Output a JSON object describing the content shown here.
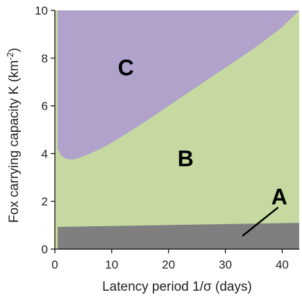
{
  "chart_data": {
    "type": "area",
    "xlabel": "Latency period 1/σ  (days)",
    "ylabel": "Fox carrying capacity K (km",
    "ylabel_sup": "-2",
    "ylabel_end": ")",
    "xlim": [
      0,
      43
    ],
    "ylim": [
      0,
      10
    ],
    "xticks": [
      0,
      10,
      20,
      30,
      40
    ],
    "yticks": [
      0,
      2,
      4,
      6,
      8,
      10
    ],
    "grid": false,
    "regions": [
      {
        "label": "A",
        "color": "#7f7f7f",
        "boundary_top": {
          "x": [
            0.5,
            43
          ],
          "y": [
            0.93,
            1.1
          ]
        }
      },
      {
        "label": "B",
        "color": "#c5d9a0",
        "description_between": "A and C"
      },
      {
        "label": "C",
        "color": "#b1a2cc",
        "boundary_bottom": {
          "x": [
            0.5,
            1,
            2,
            3,
            4,
            6,
            8,
            10,
            15,
            20,
            25,
            30,
            35,
            40,
            43
          ],
          "y": [
            4.2,
            3.95,
            3.78,
            3.75,
            3.8,
            3.98,
            4.2,
            4.45,
            5.2,
            6.0,
            6.8,
            7.6,
            8.4,
            9.3,
            10.0
          ]
        }
      }
    ],
    "annotations": [
      {
        "text": "A",
        "position": [
          39.5,
          2.2
        ],
        "arrow_from": [
          39.3,
          1.75
        ],
        "arrow_to": [
          33,
          0.55
        ]
      },
      {
        "text": "B",
        "position": [
          23,
          3.8
        ]
      },
      {
        "text": "C",
        "position": [
          12.5,
          7.6
        ]
      }
    ]
  }
}
